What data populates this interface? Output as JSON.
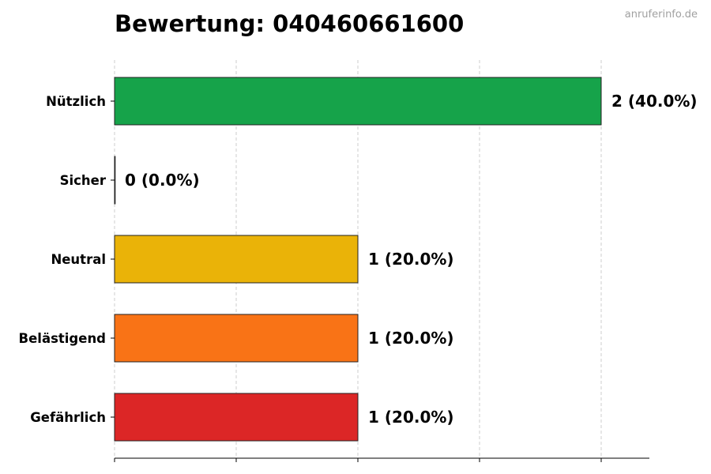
{
  "watermark": "anruferinfo.de",
  "chart_data": {
    "type": "bar",
    "orientation": "horizontal",
    "title": "Bewertung: 040460661600",
    "xlabel": "",
    "ylabel": "",
    "categories": [
      "Nützlich",
      "Sicher",
      "Neutral",
      "Belästigend",
      "Gefährlich"
    ],
    "values": [
      2,
      0,
      1,
      1,
      1
    ],
    "percent_labels": [
      "(40.0%)",
      "(0.0%)",
      "(20.0%)",
      "(20.0%)",
      "(20.0%)"
    ],
    "colors": [
      "#16a34a",
      "#22c55e",
      "#eab308",
      "#f97316",
      "#dc2626"
    ],
    "xlim": [
      0,
      2.2
    ],
    "x_gridlines": [
      0,
      0.5,
      1,
      1.5,
      2
    ],
    "grid": "vertical-dashed",
    "legend": "none"
  }
}
